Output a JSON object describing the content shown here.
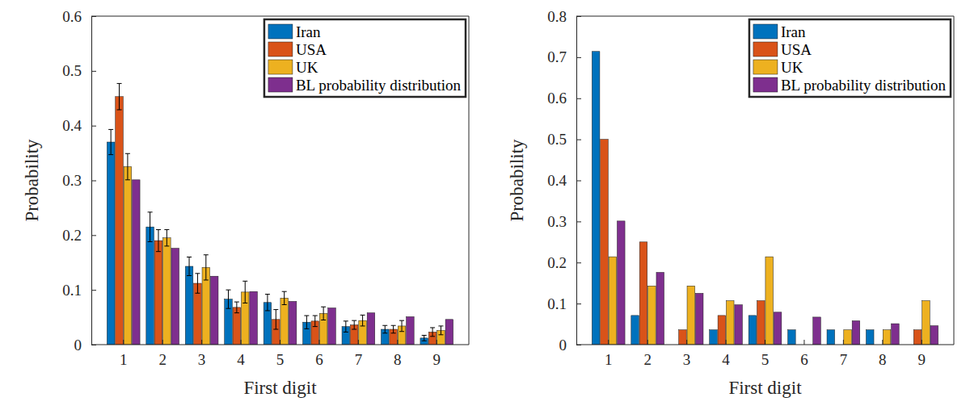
{
  "chart_data": [
    {
      "type": "bar",
      "x_label": "First digit",
      "y_label": "Probability",
      "categories": [
        "1",
        "2",
        "3",
        "4",
        "5",
        "6",
        "7",
        "8",
        "9"
      ],
      "series": [
        {
          "name": "Iran",
          "color": "#0072bd",
          "values": [
            0.37,
            0.215,
            0.143,
            0.083,
            0.077,
            0.041,
            0.033,
            0.028,
            0.012
          ],
          "errors": [
            0.023,
            0.027,
            0.017,
            0.017,
            0.015,
            0.012,
            0.01,
            0.007,
            0.005
          ]
        },
        {
          "name": "USA",
          "color": "#d95319",
          "values": [
            0.453,
            0.19,
            0.112,
            0.068,
            0.046,
            0.043,
            0.036,
            0.028,
            0.023
          ],
          "errors": [
            0.024,
            0.02,
            0.018,
            0.01,
            0.018,
            0.01,
            0.008,
            0.007,
            0.008
          ]
        },
        {
          "name": "UK",
          "color": "#edb120",
          "values": [
            0.325,
            0.195,
            0.141,
            0.096,
            0.085,
            0.057,
            0.044,
            0.034,
            0.026
          ],
          "errors": [
            0.024,
            0.015,
            0.023,
            0.02,
            0.012,
            0.012,
            0.01,
            0.01,
            0.008
          ]
        },
        {
          "name": "BL probability distribution",
          "color": "#7e2f8e",
          "values": [
            0.301,
            0.176,
            0.125,
            0.097,
            0.079,
            0.067,
            0.058,
            0.051,
            0.046
          ]
        }
      ],
      "ylim": [
        0,
        0.6
      ],
      "yticks": [
        0,
        0.1,
        0.2,
        0.3,
        0.4,
        0.5,
        0.6
      ],
      "legend": "upper right"
    },
    {
      "type": "bar",
      "x_label": "First digit",
      "y_label": "Probability",
      "categories": [
        "1",
        "2",
        "3",
        "4",
        "5",
        "6",
        "7",
        "8",
        "9"
      ],
      "series": [
        {
          "name": "Iran",
          "color": "#0072bd",
          "values": [
            0.714,
            0.071,
            0,
            0.036,
            0.071,
            0.036,
            0.036,
            0.036,
            0
          ]
        },
        {
          "name": "USA",
          "color": "#d95319",
          "values": [
            0.5,
            0.25,
            0.036,
            0.071,
            0.107,
            0,
            0,
            0,
            0.036
          ]
        },
        {
          "name": "UK",
          "color": "#edb120",
          "values": [
            0.214,
            0.143,
            0.143,
            0.107,
            0.214,
            0,
            0.036,
            0.036,
            0.107
          ]
        },
        {
          "name": "BL probability distribution",
          "color": "#7e2f8e",
          "values": [
            0.301,
            0.176,
            0.125,
            0.097,
            0.079,
            0.067,
            0.058,
            0.051,
            0.046
          ]
        }
      ],
      "ylim": [
        0,
        0.8
      ],
      "yticks": [
        0,
        0.1,
        0.2,
        0.3,
        0.4,
        0.5,
        0.6,
        0.7,
        0.8
      ],
      "legend": "upper right"
    }
  ]
}
